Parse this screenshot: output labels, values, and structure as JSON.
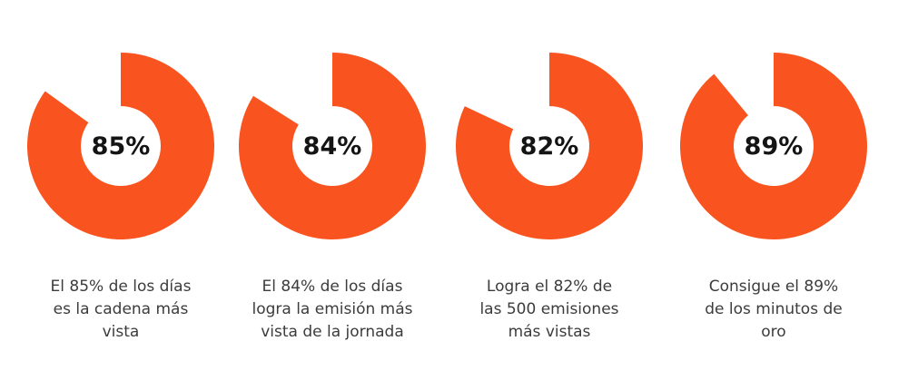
{
  "page": {
    "background_color": "#ffffff"
  },
  "chart_data": {
    "type": "pie",
    "variant": "donut",
    "unit": "%",
    "ring_color": "#F9541F",
    "hole_color": "#ffffff",
    "start_angle_deg": 90,
    "direction": "clockwise",
    "inner_radius_ratio": 0.43,
    "legend": "none",
    "text_colors": {
      "center_label": "#141414",
      "caption": "#3c3c3c"
    },
    "charts": [
      {
        "value": 85,
        "center_label": "85%",
        "caption": "El 85% de los días es la cadena más vista",
        "caption_lines": [
          "El 85% de los días",
          "es la cadena más",
          "vista"
        ]
      },
      {
        "value": 84,
        "center_label": "84%",
        "caption": "El 84% de los días logra la emisión más vista de la jornada",
        "caption_lines": [
          "El 84% de los días",
          "logra la emisión más",
          "vista de la jornada"
        ]
      },
      {
        "value": 82,
        "center_label": "82%",
        "caption": "Logra el 82% de las 500 emisiones más vistas",
        "caption_lines": [
          "Logra el 82% de",
          "las 500 emisiones",
          "más vistas"
        ]
      },
      {
        "value": 89,
        "center_label": "89%",
        "caption": "Consigue el 89% de los minutos de oro",
        "caption_lines": [
          "Consigue el 89%",
          "de los minutos de",
          "oro"
        ]
      }
    ]
  }
}
